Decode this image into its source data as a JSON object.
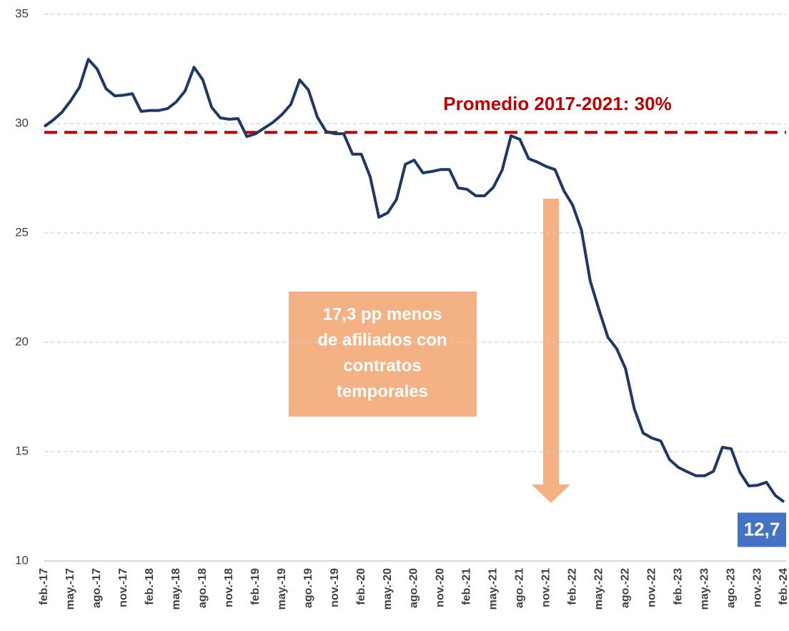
{
  "chart_data": {
    "type": "line",
    "categories": [
      "feb.-17",
      null,
      null,
      "may.-17",
      null,
      null,
      "ago.-17",
      null,
      null,
      "nov.-17",
      null,
      null,
      "feb.-18",
      null,
      null,
      "may.-18",
      null,
      null,
      "ago.-18",
      null,
      null,
      "nov.-18",
      null,
      null,
      "feb.-19",
      null,
      null,
      "may.-19",
      null,
      null,
      "ago.-19",
      null,
      null,
      "nov.-19",
      null,
      null,
      "feb.-20",
      null,
      null,
      "may.-20",
      null,
      null,
      "ago.-20",
      null,
      null,
      "nov.-20",
      null,
      null,
      "feb.-21",
      null,
      null,
      "may.-21",
      null,
      null,
      "ago.-21",
      null,
      null,
      "nov.-21",
      null,
      null,
      "feb.-22",
      null,
      null,
      "may.-22",
      null,
      null,
      "ago.-22",
      null,
      null,
      "nov.-22",
      null,
      null,
      "feb.-23",
      null,
      null,
      "may.-23",
      null,
      null,
      "ago.-23",
      null,
      null,
      "nov.-23",
      null,
      null,
      "feb.-24"
    ],
    "series": [
      {
        "color": "#1f3864",
        "values": [
          29.87,
          30.16,
          30.52,
          31.05,
          31.67,
          32.94,
          32.5,
          31.6,
          31.27,
          31.3,
          31.37,
          30.56,
          30.6,
          30.6,
          30.69,
          31.0,
          31.5,
          32.58,
          32.0,
          30.75,
          30.26,
          30.2,
          30.23,
          29.41,
          29.54,
          29.8,
          30.07,
          30.42,
          30.88,
          32.0,
          31.54,
          30.3,
          29.64,
          29.54,
          29.54,
          28.6,
          28.6,
          27.58,
          25.72,
          25.92,
          26.54,
          28.14,
          28.33,
          27.75,
          27.81,
          27.9,
          27.9,
          27.06,
          27.0,
          26.7,
          26.7,
          27.09,
          27.88,
          29.44,
          29.28,
          28.4,
          28.24,
          28.04,
          27.9,
          26.93,
          26.27,
          25.13,
          22.8,
          21.47,
          20.23,
          19.71,
          18.8,
          16.96,
          15.85,
          15.62,
          15.49,
          14.64,
          14.28,
          14.08,
          13.9,
          13.9,
          14.1,
          15.2,
          15.13,
          14.05,
          13.43,
          13.46,
          13.6,
          13.0,
          12.7
        ],
        "value_labels": [
          null,
          null,
          null,
          null,
          null,
          null,
          null,
          null,
          null,
          null,
          null,
          null,
          null,
          null,
          null,
          null,
          null,
          null,
          null,
          null,
          null,
          null,
          null,
          null,
          null,
          null,
          null,
          null,
          null,
          null,
          null,
          null,
          null,
          null,
          null,
          null,
          null,
          null,
          null,
          null,
          null,
          null,
          null,
          null,
          null,
          null,
          null,
          null,
          null,
          null,
          null,
          null,
          null,
          null,
          null,
          null,
          null,
          null,
          null,
          null,
          null,
          null,
          null,
          null,
          null,
          null,
          null,
          null,
          null,
          null,
          null,
          null,
          null,
          null,
          null,
          null,
          null,
          null,
          null,
          null,
          null,
          null,
          null,
          null,
          "12,7"
        ]
      }
    ],
    "average": {
      "value": 29.6,
      "label": "Promedio 2017-2021: 30%",
      "color": "#c00000"
    },
    "annotation": [
      "17,3 pp menos",
      "de afiliados con",
      "contratos",
      "temporales"
    ],
    "ylim": [
      10,
      35
    ],
    "yticks": [
      10,
      15,
      20,
      25,
      30,
      35
    ],
    "grid": true
  }
}
